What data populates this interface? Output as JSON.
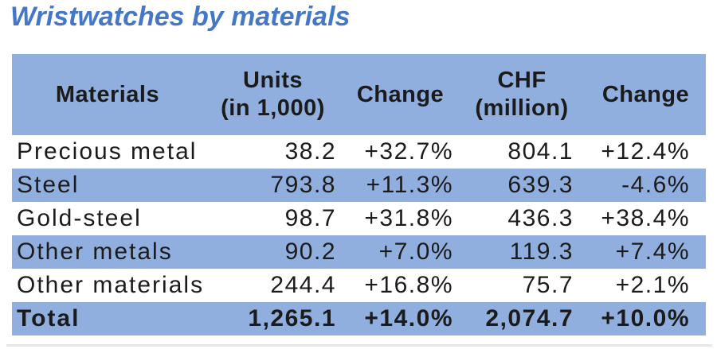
{
  "title": "Wristwatches by materials",
  "theme": {
    "title_color": "#4577c8",
    "band_blue": "#91afde",
    "text_color": "#1b1b1b",
    "row_alt_background": "#ffffff"
  },
  "table": {
    "columns": [
      {
        "label": "Materials"
      },
      {
        "label": "Units",
        "label2": "(in 1,000)"
      },
      {
        "label": "Change"
      },
      {
        "label": "CHF",
        "label2": "(million)"
      },
      {
        "label": "Change"
      }
    ],
    "rows": [
      {
        "material": "Precious metal",
        "units": "38.2",
        "units_change": "+32.7%",
        "chf": "804.1",
        "chf_change": "+12.4%"
      },
      {
        "material": "Steel",
        "units": "793.8",
        "units_change": "+11.3%",
        "chf": "639.3",
        "chf_change": "-4.6%"
      },
      {
        "material": "Gold-steel",
        "units": "98.7",
        "units_change": "+31.8%",
        "chf": "436.3",
        "chf_change": "+38.4%"
      },
      {
        "material": "Other metals",
        "units": "90.2",
        "units_change": "+7.0%",
        "chf": "119.3",
        "chf_change": "+7.4%"
      },
      {
        "material": "Other materials",
        "units": "244.4",
        "units_change": "+16.8%",
        "chf": "75.7",
        "chf_change": "+2.1%"
      }
    ],
    "total": {
      "material": "Total",
      "units": "1,265.1",
      "units_change": "+14.0%",
      "chf": "2,074.7",
      "chf_change": "+10.0%"
    }
  },
  "chart_data": {
    "type": "table",
    "title": "Wristwatches by materials",
    "columns": [
      "Materials",
      "Units (in 1,000)",
      "Change",
      "CHF (million)",
      "Change"
    ],
    "rows": [
      [
        "Precious metal",
        38.2,
        "+32.7%",
        804.1,
        "+12.4%"
      ],
      [
        "Steel",
        793.8,
        "+11.3%",
        639.3,
        "-4.6%"
      ],
      [
        "Gold-steel",
        98.7,
        "+31.8%",
        436.3,
        "+38.4%"
      ],
      [
        "Other metals",
        90.2,
        "+7.0%",
        119.3,
        "+7.4%"
      ],
      [
        "Other materials",
        244.4,
        "+16.8%",
        75.7,
        "+2.1%"
      ],
      [
        "Total",
        1265.1,
        "+14.0%",
        2074.7,
        "+10.0%"
      ]
    ],
    "layout_hints": {
      "striped_rows": "white / blue alternating, header and Total row blue",
      "materials_column_align": "left",
      "numeric_columns_align": "right",
      "header_align": "center"
    }
  }
}
